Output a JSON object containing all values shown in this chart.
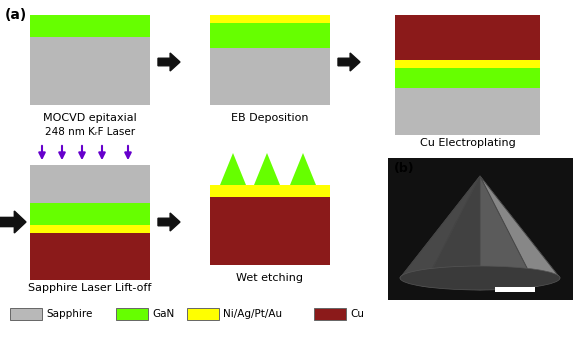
{
  "background_color": "#ffffff",
  "title_a": "(a)",
  "title_b": "(b)",
  "colors": {
    "sapphire": "#b8b8b8",
    "gan": "#66ff00",
    "ni_ag_pt_au": "#ffff00",
    "cu": "#8b1a1a",
    "arrow": "#111111",
    "laser_arrow": "#6600cc",
    "text": "#000000"
  },
  "legend": [
    {
      "label": "Sapphire",
      "color": "#b8b8b8"
    },
    {
      "label": "GaN",
      "color": "#66ff00"
    },
    {
      "label": "Ni/Ag/Pt/Au",
      "color": "#ffff00"
    },
    {
      "label": "Cu",
      "color": "#8b1a1a"
    }
  ],
  "step_labels": [
    "MOCVD epitaxial",
    "EB Deposition",
    "Cu Electroplating",
    "Sapphire Laser Lift-off",
    "Wet etching"
  ],
  "laser_text": "248 nm KᵣF Laser"
}
